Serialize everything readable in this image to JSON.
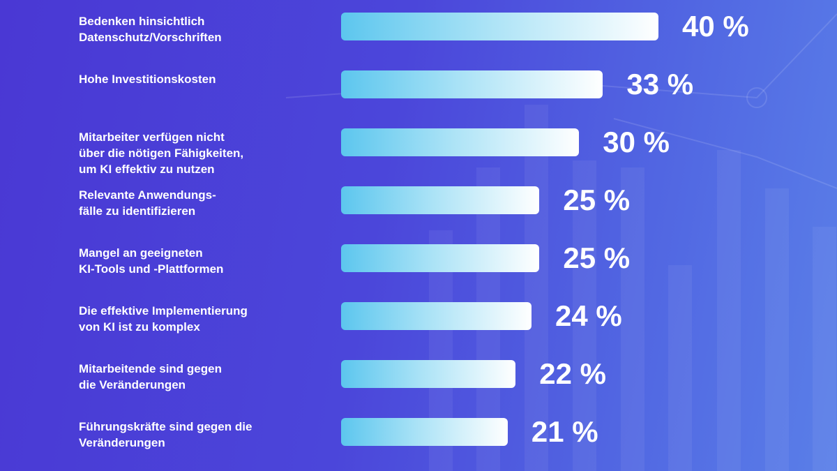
{
  "chart_data": {
    "type": "bar",
    "categories": [
      "Bedenken hinsichtlich\nDatenschutz/Vorschriften",
      "Hohe Investitionskosten",
      "Mitarbeiter verfügen nicht\nüber die nötigen Fähigkeiten,\num KI effektiv zu nutzen",
      "Relevante Anwendungs-\nfälle zu identifizieren",
      "Mangel an geeigneten\nKI-Tools und -Plattformen",
      "Die effektive Implementierung\nvon KI ist zu komplex",
      "Mitarbeitende sind gegen\ndie Veränderungen",
      "Führungskräfte sind gegen die\nVeränderungen"
    ],
    "values": [
      40,
      33,
      30,
      25,
      25,
      24,
      22,
      21
    ],
    "value_labels": [
      "40 %",
      "33 %",
      "30 %",
      "25 %",
      "25 %",
      "24 %",
      "22 %",
      "21 %"
    ]
  }
}
